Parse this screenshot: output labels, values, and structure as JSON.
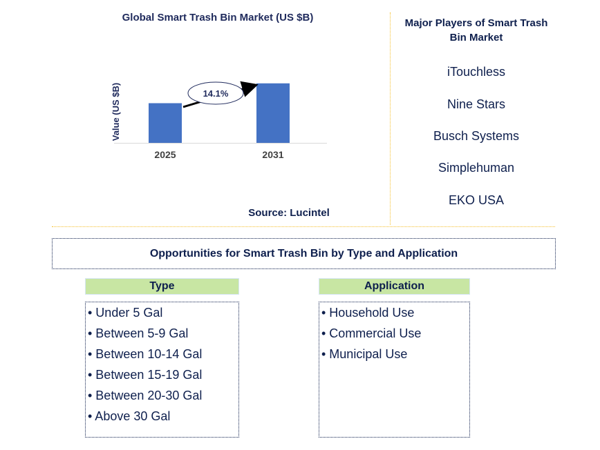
{
  "chart_data": {
    "type": "bar",
    "title": "Global Smart Trash Bin Market (US $B)",
    "categories": [
      "2025",
      "2031"
    ],
    "values": [
      1.0,
      1.5
    ],
    "ylabel": "Value (US $B)",
    "xlabel": "",
    "ylim": [
      0,
      1.6
    ],
    "annotation": "14.1%",
    "source": "Source: Lucintel",
    "bar_color": "#4472c4"
  },
  "players": {
    "title": "Major Players of Smart Trash Bin Market",
    "items": [
      "iTouchless",
      "Nine Stars",
      "Busch Systems",
      "Simplehuman",
      "EKO USA"
    ]
  },
  "opportunities": {
    "title": "Opportunities for Smart Trash Bin by Type and Application",
    "type": {
      "header": "Type",
      "items": [
        "• Under 5 Gal",
        "• Between 5-9 Gal",
        "• Between 10-14 Gal",
        "• Between 15-19 Gal",
        "• Between 20-30 Gal",
        "• Above 30 Gal"
      ]
    },
    "application": {
      "header": "Application",
      "items": [
        "• Household Use",
        "• Commercial Use",
        "• Municipal Use"
      ]
    }
  },
  "colors": {
    "divider": "#f5c02c",
    "header_bg": "#c8e6a3",
    "text": "#0e1f4d"
  }
}
